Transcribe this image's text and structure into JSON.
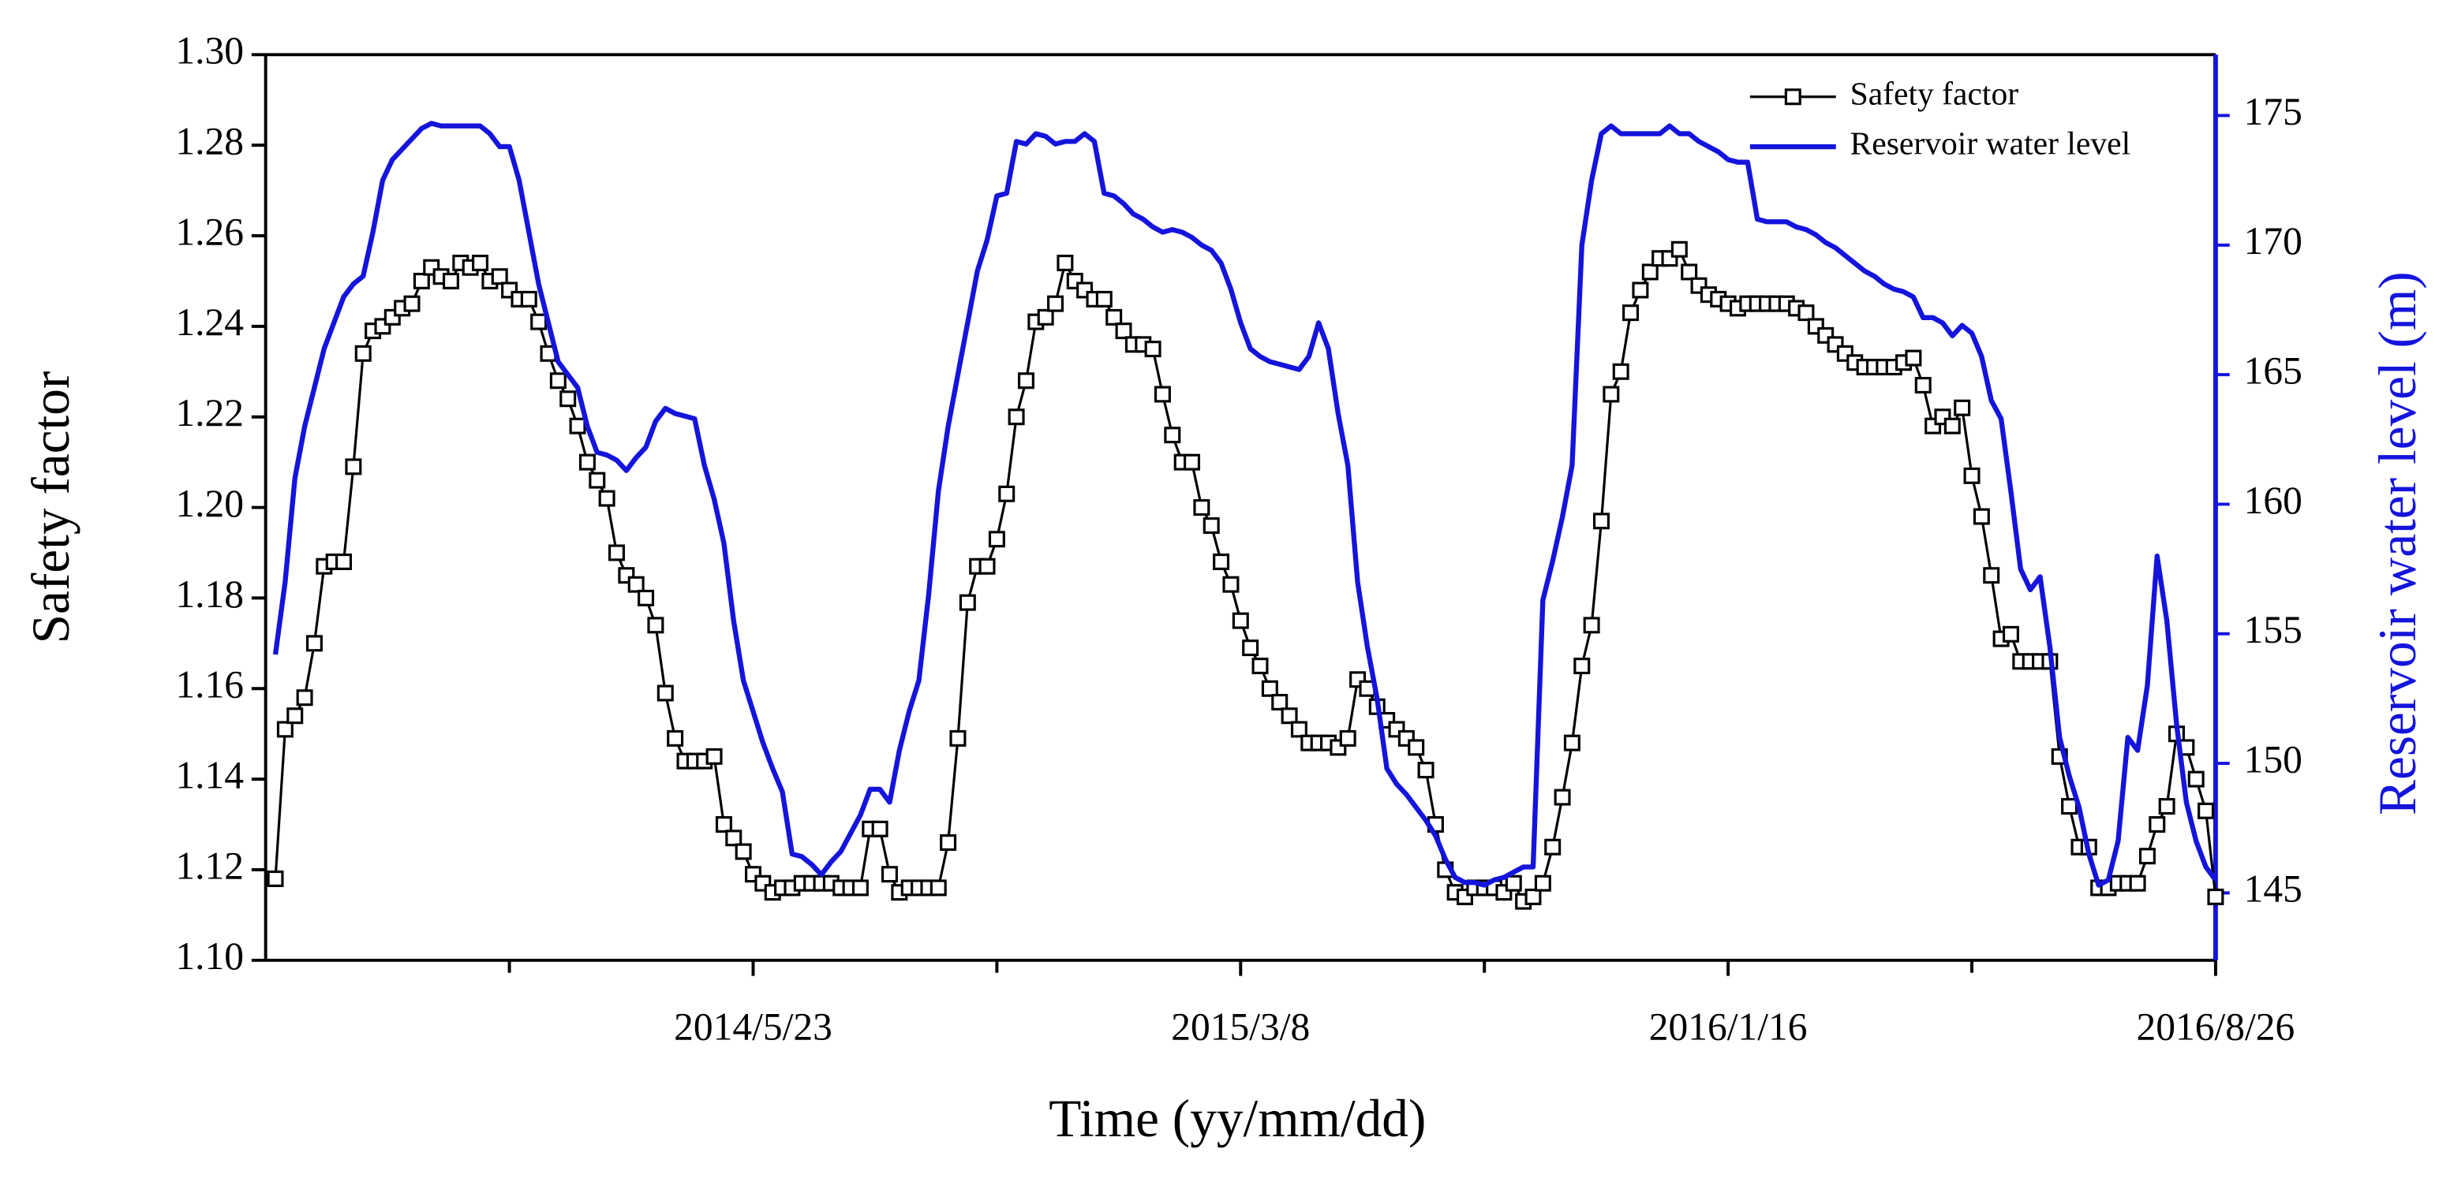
{
  "chart_data": {
    "type": "line",
    "xlabel": "Time (yy/mm/dd)",
    "ylabel": "Safety factor",
    "y2label": "Reservoir water level (m)",
    "xlim": [
      0,
      200
    ],
    "xticks": [
      {
        "value": 50,
        "label": "2014/5/23"
      },
      {
        "value": 100,
        "label": "2015/3/8"
      },
      {
        "value": 150,
        "label": "2016/1/16"
      },
      {
        "value": 200,
        "label": "2016/8/26"
      }
    ],
    "xticks_minor": [
      25,
      75,
      125,
      175
    ],
    "ylim": [
      1.1,
      1.3
    ],
    "yticks": [
      {
        "value": 1.1,
        "label": "1.10"
      },
      1.12,
      1.14,
      1.16,
      1.18,
      {
        "value": 1.2,
        "label": "1.20"
      },
      1.22,
      1.24,
      1.26,
      1.28,
      {
        "value": 1.3,
        "label": "1.30"
      }
    ],
    "y2lim": [
      142.4,
      177.35
    ],
    "y2ticks": [
      145,
      150,
      155,
      160,
      165,
      170,
      175
    ],
    "legend": "upper right",
    "x": [
      1,
      2,
      3,
      4,
      5,
      6,
      7,
      8,
      9,
      10,
      11,
      12,
      13,
      14,
      15,
      16,
      17,
      18,
      19,
      20,
      21,
      22,
      23,
      24,
      25,
      26,
      27,
      28,
      29,
      30,
      31,
      32,
      33,
      34,
      35,
      36,
      37,
      38,
      39,
      40,
      41,
      42,
      43,
      44,
      45,
      46,
      47,
      48,
      49,
      50,
      51,
      52,
      53,
      54,
      55,
      56,
      57,
      58,
      59,
      60,
      61,
      62,
      63,
      64,
      65,
      66,
      67,
      68,
      69,
      70,
      71,
      72,
      73,
      74,
      75,
      76,
      77,
      78,
      79,
      80,
      81,
      82,
      83,
      84,
      85,
      86,
      87,
      88,
      89,
      90,
      91,
      92,
      93,
      94,
      95,
      96,
      97,
      98,
      99,
      100,
      101,
      102,
      103,
      104,
      105,
      106,
      107,
      108,
      109,
      110,
      111,
      112,
      113,
      114,
      115,
      116,
      117,
      118,
      119,
      120,
      121,
      122,
      123,
      124,
      125,
      126,
      127,
      128,
      129,
      130,
      131,
      132,
      133,
      134,
      135,
      136,
      137,
      138,
      139,
      140,
      141,
      142,
      143,
      144,
      145,
      146,
      147,
      148,
      149,
      150,
      151,
      152,
      153,
      154,
      155,
      156,
      157,
      158,
      159,
      160,
      161,
      162,
      163,
      164,
      165,
      166,
      167,
      168,
      169,
      170,
      171,
      172,
      173,
      174,
      175,
      176,
      177,
      178,
      179,
      180,
      181,
      182,
      183,
      184,
      185,
      186,
      187,
      188,
      189,
      190,
      191,
      192,
      193,
      194,
      195,
      196,
      197,
      198,
      199,
      200
    ],
    "series": [
      {
        "name": "Safety factor",
        "color": "#000000",
        "axis": "y",
        "marker": "square",
        "values": [
          1.118,
          1.151,
          1.154,
          1.158,
          1.17,
          1.187,
          1.188,
          1.188,
          1.209,
          1.234,
          1.239,
          1.24,
          1.242,
          1.244,
          1.245,
          1.25,
          1.253,
          1.251,
          1.25,
          1.254,
          1.253,
          1.254,
          1.25,
          1.251,
          1.248,
          1.246,
          1.246,
          1.241,
          1.234,
          1.228,
          1.224,
          1.218,
          1.21,
          1.206,
          1.202,
          1.19,
          1.185,
          1.183,
          1.18,
          1.174,
          1.159,
          1.149,
          1.144,
          1.144,
          1.144,
          1.145,
          1.13,
          1.127,
          1.124,
          1.119,
          1.117,
          1.115,
          1.116,
          1.116,
          1.117,
          1.117,
          1.117,
          1.117,
          1.116,
          1.116,
          1.116,
          1.129,
          1.129,
          1.119,
          1.115,
          1.116,
          1.116,
          1.116,
          1.116,
          1.126,
          1.149,
          1.179,
          1.187,
          1.187,
          1.193,
          1.203,
          1.22,
          1.228,
          1.241,
          1.242,
          1.245,
          1.254,
          1.25,
          1.248,
          1.246,
          1.246,
          1.242,
          1.239,
          1.236,
          1.236,
          1.235,
          1.225,
          1.216,
          1.21,
          1.21,
          1.2,
          1.196,
          1.188,
          1.183,
          1.175,
          1.169,
          1.165,
          1.16,
          1.157,
          1.154,
          1.151,
          1.148,
          1.148,
          1.148,
          1.147,
          1.149,
          1.162,
          1.16,
          1.156,
          1.153,
          1.151,
          1.149,
          1.147,
          1.142,
          1.13,
          1.12,
          1.115,
          1.114,
          1.116,
          1.116,
          1.116,
          1.115,
          1.117,
          1.113,
          1.114,
          1.117,
          1.125,
          1.136,
          1.148,
          1.165,
          1.174,
          1.197,
          1.225,
          1.23,
          1.243,
          1.248,
          1.252,
          1.255,
          1.255,
          1.257,
          1.252,
          1.249,
          1.247,
          1.246,
          1.245,
          1.244,
          1.245,
          1.245,
          1.245,
          1.245,
          1.245,
          1.244,
          1.243,
          1.24,
          1.238,
          1.236,
          1.234,
          1.232,
          1.231,
          1.231,
          1.231,
          1.231,
          1.232,
          1.233,
          1.227,
          1.218,
          1.22,
          1.218,
          1.222,
          1.207,
          1.198,
          1.185,
          1.171,
          1.172,
          1.166,
          1.166,
          1.166,
          1.166,
          1.145,
          1.134,
          1.125,
          1.125,
          1.116,
          1.116,
          1.117,
          1.117,
          1.117,
          1.123,
          1.13,
          1.134,
          1.15,
          1.147,
          1.14,
          1.133,
          1.114
        ]
      },
      {
        "name": "Reservoir water level",
        "color": "#1414dc",
        "axis": "y2",
        "values": [
          154.2,
          157,
          161,
          163,
          164.5,
          166,
          167,
          168,
          168.5,
          168.8,
          170.5,
          172.5,
          173.3,
          173.7,
          174.1,
          174.5,
          174.7,
          174.6,
          174.6,
          174.6,
          174.6,
          174.6,
          174.3,
          173.8,
          173.8,
          172.5,
          170.5,
          168.5,
          167,
          165.5,
          165,
          164.5,
          163,
          162,
          161.9,
          161.7,
          161.3,
          161.8,
          162.2,
          163.2,
          163.7,
          163.5,
          163.4,
          163.3,
          161.5,
          160.2,
          158.5,
          155.5,
          153.2,
          152,
          150.8,
          149.8,
          148.9,
          146.5,
          146.4,
          146.1,
          145.7,
          146.2,
          146.6,
          147.3,
          148,
          149,
          149,
          148.5,
          150.5,
          152,
          153.2,
          156.5,
          160.5,
          163,
          165,
          167,
          169,
          170.2,
          171.9,
          172,
          174,
          173.9,
          174.3,
          174.2,
          173.9,
          174,
          174,
          174.3,
          174,
          172,
          171.9,
          171.6,
          171.2,
          171,
          170.7,
          170.5,
          170.6,
          170.5,
          170.3,
          170,
          169.8,
          169.3,
          168.3,
          167,
          166,
          165.7,
          165.5,
          165.4,
          165.3,
          165.2,
          165.7,
          167,
          166,
          163.5,
          161.5,
          157,
          154.5,
          152.5,
          149.8,
          149.2,
          148.8,
          148.3,
          147.8,
          147.2,
          146.3,
          145.6,
          145.4,
          145.4,
          145.3,
          145.5,
          145.6,
          145.8,
          146,
          146,
          156.3,
          157.8,
          159.5,
          161.5,
          170,
          172.5,
          174.3,
          174.6,
          174.3,
          174.3,
          174.3,
          174.3,
          174.3,
          174.6,
          174.3,
          174.3,
          174,
          173.8,
          173.6,
          173.3,
          173.2,
          173.2,
          171,
          170.9,
          170.9,
          170.9,
          170.7,
          170.6,
          170.4,
          170.1,
          169.9,
          169.6,
          169.3,
          169,
          168.8,
          168.5,
          168.3,
          168.2,
          168,
          167.2,
          167.2,
          167,
          166.5,
          166.9,
          166.6,
          165.7,
          164,
          163.3,
          160.5,
          157.5,
          156.7,
          157.2,
          154.5,
          151,
          149.5,
          148.3,
          146.5,
          145.3,
          145.5,
          147,
          151,
          150.5,
          153,
          158,
          155.5,
          151.5,
          148.5,
          147,
          146,
          145.5
        ]
      }
    ]
  }
}
